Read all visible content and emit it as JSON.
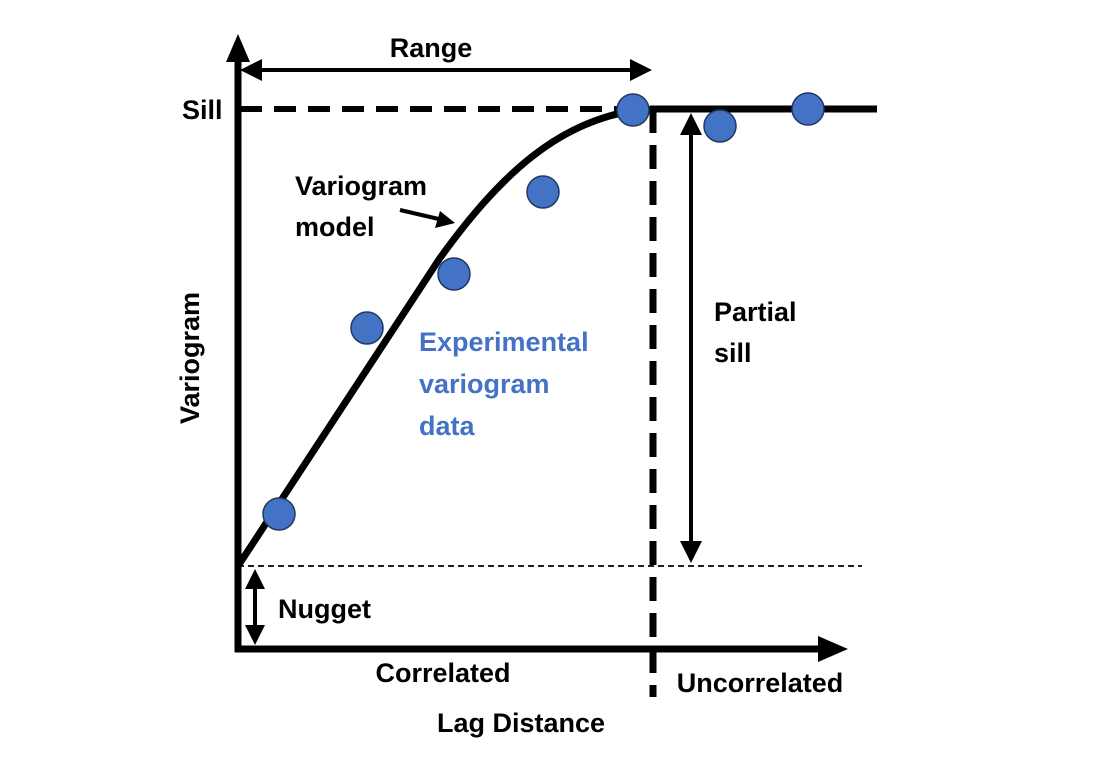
{
  "labels": {
    "range": "Range",
    "sill": "Sill",
    "variogram_model_line1": "Variogram",
    "variogram_model_line2": "model",
    "experimental_line1": "Experimental",
    "experimental_line2": "variogram",
    "experimental_line3": "data",
    "partial_sill_line1": "Partial",
    "partial_sill_line2": "sill",
    "y_axis": "Variogram",
    "nugget": "Nugget",
    "correlated": "Correlated",
    "uncorrelated": "Uncorrelated",
    "x_axis": "Lag Distance"
  },
  "colors": {
    "ink": "#000000",
    "data_point_fill": "#4472C4",
    "data_point_stroke": "#1F3864",
    "experimental_text": "#4472C4"
  }
}
